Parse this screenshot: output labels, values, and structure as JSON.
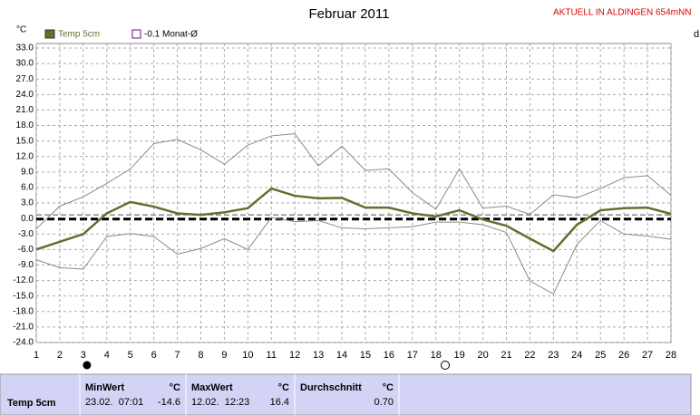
{
  "chart_data": {
    "type": "line",
    "title": "Februar 2011",
    "station": "AKTUELL IN ALDINGEN 654mNN",
    "y_label": "°C",
    "right_label": "d",
    "x": [
      1,
      2,
      3,
      4,
      5,
      6,
      7,
      8,
      9,
      10,
      11,
      12,
      13,
      14,
      15,
      16,
      17,
      18,
      19,
      20,
      21,
      22,
      23,
      24,
      25,
      26,
      27,
      28
    ],
    "xlim": [
      1,
      28
    ],
    "xticks": [
      1,
      2,
      3,
      4,
      5,
      6,
      7,
      8,
      9,
      10,
      11,
      12,
      13,
      14,
      15,
      16,
      17,
      18,
      19,
      20,
      21,
      22,
      23,
      24,
      25,
      26,
      27,
      28
    ],
    "ylim": [
      -24,
      33
    ],
    "yticks": [
      {
        "value": 33,
        "label": "33.0"
      },
      {
        "value": 30,
        "label": "30.0"
      },
      {
        "value": 27,
        "label": "27.0"
      },
      {
        "value": 24,
        "label": "24.0"
      },
      {
        "value": 21,
        "label": "21.0"
      },
      {
        "value": 18,
        "label": "18.0"
      },
      {
        "value": 15,
        "label": "15.0"
      },
      {
        "value": 12,
        "label": "12.0"
      },
      {
        "value": 9,
        "label": "9.0"
      },
      {
        "value": 6,
        "label": "6.0"
      },
      {
        "value": 3,
        "label": "3.0"
      },
      {
        "value": 0,
        "label": "0.0"
      },
      {
        "value": -3,
        "label": "-3.0"
      },
      {
        "value": -6,
        "label": "-6.0"
      },
      {
        "value": -9,
        "label": "-9.0"
      },
      {
        "value": -12,
        "label": "-12.0"
      },
      {
        "value": -15,
        "label": "-15.0"
      },
      {
        "value": -18,
        "label": "-18.0"
      },
      {
        "value": -21,
        "label": "-21.0"
      },
      {
        "value": -24,
        "label": "-24.0"
      }
    ],
    "grid": true,
    "series": [
      {
        "name": "Temp 5cm",
        "color": "#6b6b30",
        "width": 2.5,
        "values": [
          -6.0,
          -4.5,
          -3.0,
          1.0,
          3.2,
          2.3,
          1.0,
          0.7,
          1.2,
          2.0,
          5.8,
          4.4,
          3.9,
          4.0,
          2.1,
          2.1,
          1.0,
          0.4,
          1.6,
          -0.2,
          -1.4,
          -3.9,
          -6.3,
          -1.2,
          1.6,
          2.0,
          2.1,
          0.9
        ]
      },
      {
        "color": "#8c8c78",
        "width": 1,
        "values": [
          -2.0,
          2.4,
          4.2,
          6.8,
          9.6,
          14.5,
          15.3,
          13.3,
          10.5,
          14.2,
          16.0,
          16.4,
          10.2,
          14.0,
          9.3,
          9.6,
          5.0,
          1.8,
          9.6,
          2.0,
          2.4,
          0.8,
          4.6,
          4.0,
          5.8,
          7.9,
          8.3,
          4.5
        ]
      },
      {
        "color": "#8c8c78",
        "width": 1,
        "values": [
          -8.0,
          -9.5,
          -9.8,
          -3.5,
          -2.9,
          -3.5,
          -6.9,
          -5.8,
          -3.9,
          -6.0,
          0.2,
          -0.6,
          -0.4,
          -1.8,
          -2.0,
          -1.8,
          -1.6,
          -0.7,
          -0.7,
          -1.2,
          -2.7,
          -12.1,
          -14.6,
          -5.0,
          -0.4,
          -3.0,
          -3.4,
          -4.0
        ]
      }
    ],
    "reference_lines": [
      {
        "value": -0.1,
        "label": "-0.1 Monat-Ø",
        "color": "#000000",
        "width": 3,
        "dash": "8 4"
      },
      {
        "value": 0.7,
        "color": "#555555",
        "width": 1,
        "dash": "6 3"
      }
    ]
  },
  "stats": {
    "row_label": "Temp 5cm",
    "columns": [
      {
        "header": "MinWert",
        "unit": "°C",
        "time": "23.02.  07:01",
        "value": -14.6
      },
      {
        "header": "MaxWert",
        "unit": "°C",
        "time": "12.02.  12:23",
        "value": 16.4
      },
      {
        "header": "Durchschnitt",
        "unit": "°C",
        "value": 0.7,
        "value_label": "0.70"
      }
    ]
  }
}
